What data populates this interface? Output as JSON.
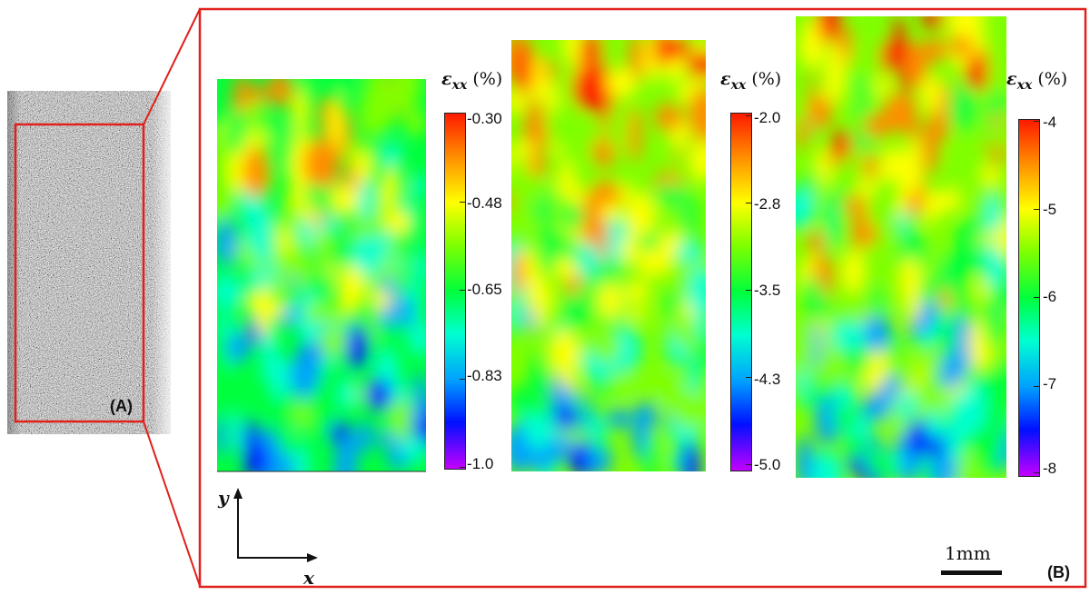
{
  "panels": {
    "a": {
      "label": "(A)"
    },
    "b": {
      "label": "(B)"
    }
  },
  "colorbars": [
    {
      "title_symbol": "ε",
      "title_sub": "xx",
      "title_unit": "(%)",
      "ticks": [
        "-0.30",
        "-0.48",
        "-0.65",
        "-0.83",
        "-1.0"
      ]
    },
    {
      "title_symbol": "ε",
      "title_sub": "xx",
      "title_unit": "(%)",
      "ticks": [
        "-2.0",
        "-2.8",
        "-3.5",
        "-4.3",
        "-5.0"
      ]
    },
    {
      "title_symbol": "ε",
      "title_sub": "xx",
      "title_unit": "(%)",
      "ticks": [
        "-4",
        "-5",
        "-6",
        "-7",
        "-8"
      ]
    }
  ],
  "axes": {
    "x_label": "x",
    "y_label": "y"
  },
  "scale_bar": {
    "label": "1mm"
  },
  "colors": {
    "frame": "#e0201c",
    "text": "#111111"
  },
  "colormap": "jet"
}
